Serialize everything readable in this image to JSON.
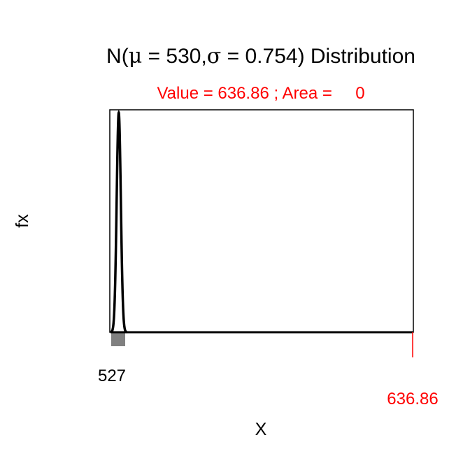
{
  "chart_data": {
    "type": "line",
    "title_prefix": "N(",
    "title_mu_symbol": "μ",
    "title_eq": " = ",
    "title_mu": "530",
    "title_comma": ",",
    "title_sigma_symbol": "σ",
    "title_sigma": "0.754",
    "title_suffix": ") Distribution",
    "subtitle": "Value = 636.86 ; Area =     0",
    "xlabel": "X",
    "ylabel": "fx",
    "mu": 530,
    "sigma": 0.754,
    "xlim": [
      527,
      636.86
    ],
    "critical_value": 636.86,
    "area": 0,
    "tick_labels": {
      "left": "527",
      "critical": "636.86"
    },
    "colors": {
      "curve": "#000000",
      "critical": "#ff0000",
      "text": "#000000"
    }
  }
}
